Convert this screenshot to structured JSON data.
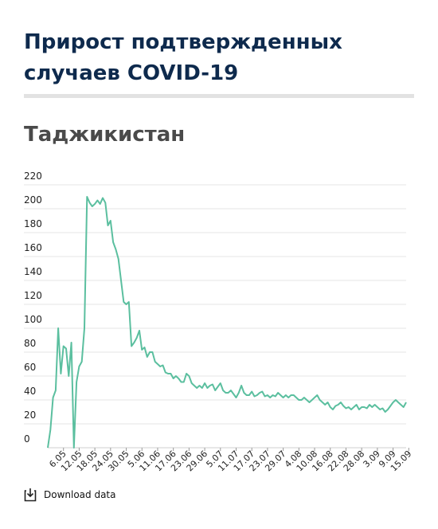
{
  "header": {
    "title": "Прирост подтвержденных случаев COVID-19",
    "subtitle": "Таджикистан"
  },
  "download": {
    "label": "Download data",
    "icon": "download-icon"
  },
  "colors": {
    "title": "#0e2a4d",
    "line": "#5bbf9f",
    "grid": "#e6e6e6",
    "divider": "#e2e2e2"
  },
  "chart_data": {
    "type": "line",
    "title": "",
    "xlabel": "",
    "ylabel": "",
    "ylim": [
      0,
      220
    ],
    "yticks": [
      0,
      20,
      40,
      60,
      80,
      100,
      120,
      140,
      160,
      180,
      200,
      220
    ],
    "grid": true,
    "x_start": "30.04",
    "x_end": "16.09",
    "xtick_labels": [
      "6.05",
      "12.05",
      "18.05",
      "24.05",
      "30.05",
      "5.06",
      "11.06",
      "17.06",
      "23.06",
      "29.06",
      "5.07",
      "11.07",
      "17.07",
      "23.07",
      "29.07",
      "4.08",
      "10.08",
      "16.08",
      "22.08",
      "28.08",
      "3.09",
      "9.09",
      "15.09"
    ],
    "series": [
      {
        "values": [
          0,
          15,
          42,
          48,
          100,
          62,
          85,
          83,
          60,
          88,
          0,
          55,
          68,
          72,
          100,
          210,
          205,
          202,
          204,
          207,
          204,
          209,
          205,
          186,
          190,
          172,
          166,
          158,
          140,
          122,
          120,
          122,
          85,
          88,
          92,
          98,
          82,
          84,
          76,
          80,
          80,
          72,
          70,
          68,
          69,
          63,
          62,
          62,
          58,
          60,
          58,
          55,
          55,
          62,
          60,
          54,
          52,
          50,
          52,
          50,
          54,
          50,
          52,
          53,
          48,
          51,
          54,
          48,
          46,
          46,
          48,
          45,
          42,
          46,
          52,
          46,
          44,
          44,
          47,
          43,
          44,
          46,
          47,
          43,
          44,
          42,
          44,
          43,
          46,
          44,
          42,
          44,
          42,
          44,
          44,
          42,
          40,
          40,
          42,
          40,
          38,
          40,
          42,
          44,
          40,
          38,
          36,
          38,
          34,
          32,
          35,
          36,
          38,
          35,
          33,
          34,
          32,
          34,
          36,
          32,
          34,
          34,
          33,
          36,
          34,
          36,
          34,
          32,
          33,
          30,
          32,
          35,
          38,
          40,
          38,
          36,
          34,
          38
        ]
      }
    ]
  }
}
